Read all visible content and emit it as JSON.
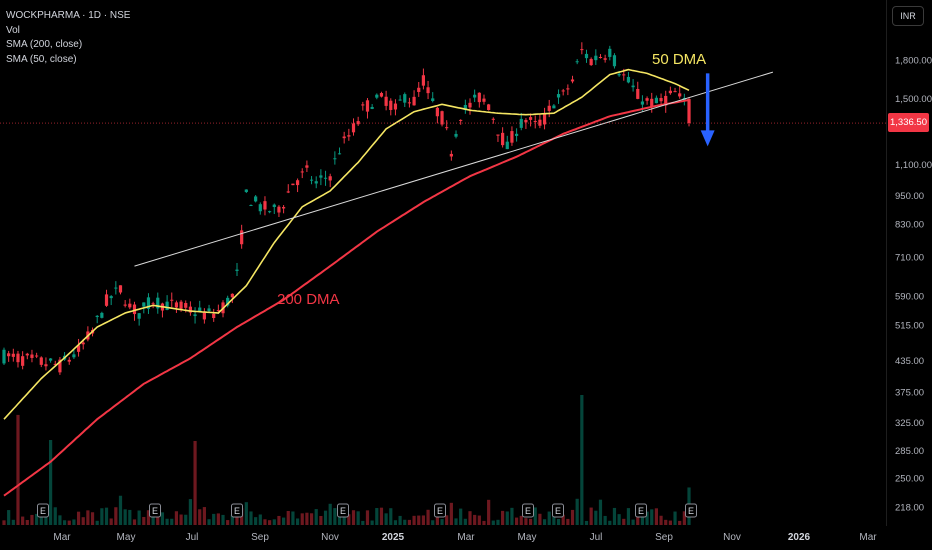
{
  "header": {
    "symbol_line": "WOCKPHARMA · 1D · NSE",
    "indicators": [
      "Vol",
      "SMA (200, close)",
      "SMA (50, close)"
    ]
  },
  "currency_button": "INR",
  "last_price": "1,336.50",
  "annotations": {
    "dma50": "50 DMA",
    "dma200": "200 DMA"
  },
  "colors": {
    "up": "#089981",
    "down": "#f23645",
    "sma50": "#f5e663",
    "sma200": "#f23645",
    "trendline": "#d9d9d9",
    "arrow": "#2962ff",
    "background": "#000000"
  },
  "chart_data": {
    "type": "candlestick",
    "price_scale": "log",
    "y_ticks": [
      "1,800.00",
      "1,500.00",
      "1,336.50",
      "1,100.00",
      "950.00",
      "830.00",
      "710.00",
      "590.00",
      "515.00",
      "435.00",
      "375.00",
      "325.00",
      "285.00",
      "250.00",
      "218.00"
    ],
    "x_ticks": [
      {
        "label": "Mar",
        "bold": false
      },
      {
        "label": "May",
        "bold": false
      },
      {
        "label": "Jul",
        "bold": false
      },
      {
        "label": "Sep",
        "bold": false
      },
      {
        "label": "Nov",
        "bold": false
      },
      {
        "label": "2025",
        "bold": true
      },
      {
        "label": "Mar",
        "bold": false
      },
      {
        "label": "May",
        "bold": false
      },
      {
        "label": "Jul",
        "bold": false
      },
      {
        "label": "Sep",
        "bold": false
      },
      {
        "label": "Nov",
        "bold": false
      },
      {
        "label": "2026",
        "bold": true
      },
      {
        "label": "Mar",
        "bold": false
      }
    ],
    "earnings_marker": "E",
    "earnings_count": 10,
    "price_path": [
      [
        0,
        445
      ],
      [
        6,
        435
      ],
      [
        12,
        425
      ],
      [
        16,
        455
      ],
      [
        19,
        500
      ],
      [
        22,
        575
      ],
      [
        25,
        610
      ],
      [
        27,
        560
      ],
      [
        29,
        545
      ],
      [
        32,
        580
      ],
      [
        34,
        570
      ],
      [
        38,
        560
      ],
      [
        42,
        545
      ],
      [
        44,
        540
      ],
      [
        46,
        550
      ],
      [
        49,
        590
      ],
      [
        50,
        650
      ],
      [
        51,
        780
      ],
      [
        52,
        950
      ],
      [
        55,
        900
      ],
      [
        58,
        880
      ],
      [
        60,
        920
      ],
      [
        62,
        1010
      ],
      [
        65,
        1060
      ],
      [
        67,
        1000
      ],
      [
        70,
        1050
      ],
      [
        72,
        1180
      ],
      [
        75,
        1300
      ],
      [
        77,
        1420
      ],
      [
        79,
        1480
      ],
      [
        82,
        1500
      ],
      [
        84,
        1420
      ],
      [
        86,
        1520
      ],
      [
        88,
        1480
      ],
      [
        90,
        1640
      ],
      [
        92,
        1460
      ],
      [
        94,
        1370
      ],
      [
        96,
        1180
      ],
      [
        98,
        1400
      ],
      [
        100,
        1450
      ],
      [
        102,
        1510
      ],
      [
        104,
        1460
      ],
      [
        106,
        1300
      ],
      [
        108,
        1190
      ],
      [
        110,
        1300
      ],
      [
        112,
        1360
      ],
      [
        114,
        1320
      ],
      [
        116,
        1360
      ],
      [
        118,
        1480
      ],
      [
        120,
        1520
      ],
      [
        122,
        1640
      ],
      [
        124,
        1880
      ],
      [
        126,
        1800
      ],
      [
        128,
        1840
      ],
      [
        130,
        1880
      ],
      [
        132,
        1720
      ],
      [
        134,
        1620
      ],
      [
        136,
        1520
      ],
      [
        138,
        1480
      ],
      [
        140,
        1460
      ],
      [
        142,
        1500
      ],
      [
        144,
        1540
      ],
      [
        146,
        1460
      ],
      [
        147,
        1336.5
      ]
    ],
    "sma50_path": [
      [
        0,
        330
      ],
      [
        8,
        400
      ],
      [
        14,
        450
      ],
      [
        20,
        510
      ],
      [
        26,
        545
      ],
      [
        32,
        565
      ],
      [
        40,
        550
      ],
      [
        46,
        545
      ],
      [
        52,
        620
      ],
      [
        58,
        760
      ],
      [
        64,
        900
      ],
      [
        70,
        970
      ],
      [
        76,
        1110
      ],
      [
        82,
        1300
      ],
      [
        88,
        1410
      ],
      [
        94,
        1460
      ],
      [
        100,
        1420
      ],
      [
        106,
        1400
      ],
      [
        112,
        1390
      ],
      [
        118,
        1400
      ],
      [
        124,
        1510
      ],
      [
        130,
        1680
      ],
      [
        134,
        1720
      ],
      [
        138,
        1690
      ],
      [
        144,
        1610
      ],
      [
        147,
        1560
      ]
    ],
    "sma200_path": [
      [
        0,
        230
      ],
      [
        10,
        270
      ],
      [
        20,
        330
      ],
      [
        30,
        390
      ],
      [
        40,
        440
      ],
      [
        50,
        510
      ],
      [
        60,
        580
      ],
      [
        70,
        680
      ],
      [
        80,
        800
      ],
      [
        90,
        920
      ],
      [
        100,
        1040
      ],
      [
        110,
        1140
      ],
      [
        120,
        1270
      ],
      [
        130,
        1380
      ],
      [
        140,
        1450
      ],
      [
        147,
        1490
      ]
    ],
    "trendline": {
      "from": [
        28,
        680
      ],
      "to": [
        165,
        1700
      ]
    },
    "arrow": {
      "x": 151,
      "from": 1690,
      "to": 1220
    }
  }
}
